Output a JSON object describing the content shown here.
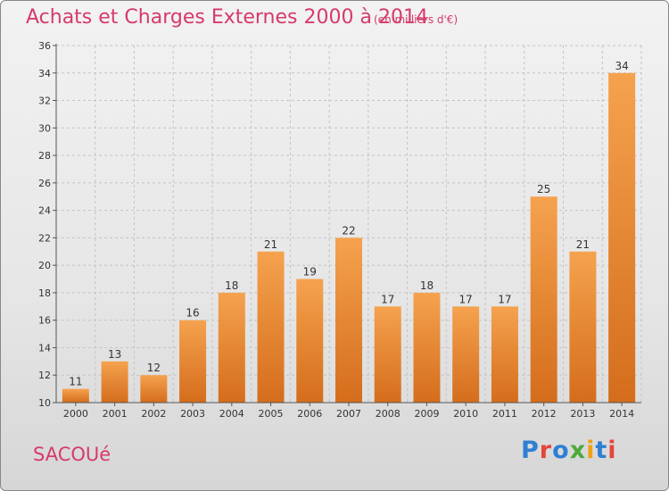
{
  "header": {
    "title": "Achats et Charges Externes 2000 à 2014",
    "unit": "(en milliers d'€)"
  },
  "footer": {
    "commune": "SACOUé",
    "logo": "Proxiti"
  },
  "colors": {
    "title": "#d63a6b",
    "bar_top": "#f5a24e",
    "bar_bottom": "#d46d1c"
  },
  "chart_data": {
    "type": "bar",
    "title": "Achats et Charges Externes 2000 à 2014",
    "subtitle": "(en milliers d'€)",
    "categories": [
      "2000",
      "2001",
      "2002",
      "2003",
      "2004",
      "2005",
      "2006",
      "2007",
      "2008",
      "2009",
      "2010",
      "2011",
      "2012",
      "2013",
      "2014"
    ],
    "values": [
      11,
      13,
      12,
      16,
      18,
      21,
      19,
      22,
      17,
      18,
      17,
      17,
      25,
      21,
      34
    ],
    "ylim": [
      10,
      36
    ],
    "yticks": [
      10,
      12,
      14,
      16,
      18,
      20,
      22,
      24,
      26,
      28,
      30,
      32,
      34,
      36
    ],
    "xlabel": "",
    "ylabel": "",
    "grid": true,
    "data_labels": true
  }
}
